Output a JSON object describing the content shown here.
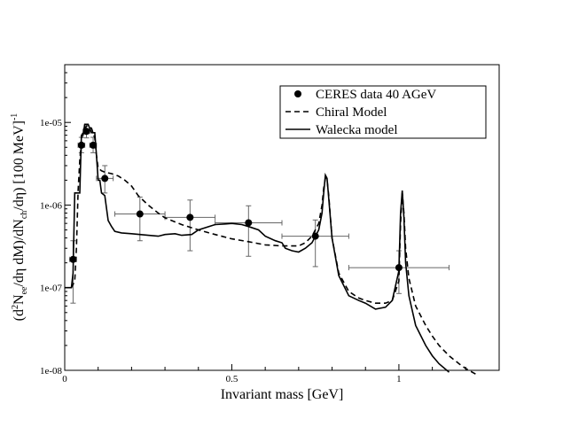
{
  "chart_data": {
    "type": "line",
    "title": "",
    "xlabel": "Invariant mass [GeV]",
    "ylabel_parts": {
      "open": "(d",
      "sup2": "2",
      "n": "N",
      "sub_ee": "ee",
      "mid": "/dη  dM)/dN",
      "sub_ch": "ch",
      "tail": "/dη) [100 MeV]",
      "sup_m1": "-1"
    },
    "xlim": [
      0,
      1.3
    ],
    "ylim": [
      1e-08,
      5e-05
    ],
    "yscale": "log",
    "x_ticks": [
      {
        "value": 0,
        "label": "0"
      },
      {
        "value": 0.5,
        "label": "0.5"
      },
      {
        "value": 1,
        "label": "1"
      }
    ],
    "y_ticks": [
      {
        "value": 1e-08,
        "label": "1e-08"
      },
      {
        "value": 1e-07,
        "label": "1e-07"
      },
      {
        "value": 1e-06,
        "label": "1e-06"
      },
      {
        "value": 1e-05,
        "label": "1e-05"
      }
    ],
    "legend_position": "top-right",
    "series": [
      {
        "name": "CERES data 40 AGeV",
        "style": "markers",
        "points": [
          {
            "x": 0.025,
            "y": 2.2e-07,
            "xerr": 0.01,
            "ylo": 6.5e-08,
            "yhi": 3.7e-07
          },
          {
            "x": 0.05,
            "y": 5.3e-06,
            "xerr": 0.01,
            "ylo": 4.3e-06,
            "yhi": 6.6e-06
          },
          {
            "x": 0.065,
            "y": 7.8e-06,
            "xerr": 0.01,
            "ylo": 6.5e-06,
            "yhi": 9.3e-06
          },
          {
            "x": 0.085,
            "y": 5.3e-06,
            "xerr": 0.01,
            "ylo": 4.3e-06,
            "yhi": 6.6e-06
          },
          {
            "x": 0.12,
            "y": 2.1e-06,
            "xerr": 0.025,
            "ylo": 1.4e-06,
            "yhi": 3e-06
          },
          {
            "x": 0.225,
            "y": 7.8e-07,
            "xerr": 0.075,
            "ylo": 3.7e-07,
            "yhi": 1.25e-06
          },
          {
            "x": 0.375,
            "y": 7.1e-07,
            "xerr": 0.075,
            "ylo": 2.8e-07,
            "yhi": 1.15e-06
          },
          {
            "x": 0.55,
            "y": 6.1e-07,
            "xerr": 0.1,
            "ylo": 2.4e-07,
            "yhi": 9.8e-07
          },
          {
            "x": 0.75,
            "y": 4.2e-07,
            "xerr": 0.1,
            "ylo": 1.8e-07,
            "yhi": 6.6e-07
          },
          {
            "x": 1.0,
            "y": 1.75e-07,
            "xerr": 0.15,
            "ylo": 8.5e-08,
            "yhi": 2.8e-07
          }
        ]
      },
      {
        "name": "Chiral Model",
        "style": "dashed",
        "x": [
          0.02,
          0.03,
          0.035,
          0.04,
          0.045,
          0.05,
          0.055,
          0.06,
          0.065,
          0.07,
          0.08,
          0.09,
          0.095,
          0.1,
          0.11,
          0.12,
          0.14,
          0.16,
          0.18,
          0.2,
          0.22,
          0.25,
          0.28,
          0.3,
          0.35,
          0.4,
          0.45,
          0.5,
          0.55,
          0.6,
          0.65,
          0.7,
          0.72,
          0.74,
          0.76,
          0.77,
          0.775,
          0.78,
          0.785,
          0.79,
          0.8,
          0.82,
          0.85,
          0.88,
          0.9,
          0.93,
          0.96,
          0.98,
          1.0,
          1.005,
          1.01,
          1.015,
          1.02,
          1.03,
          1.05,
          1.08,
          1.1,
          1.12,
          1.15,
          1.18,
          1.2,
          1.23
        ],
        "y": [
          1e-07,
          1.2e-07,
          3e-07,
          1.5e-06,
          3.5e-06,
          6e-06,
          8e-06,
          8.6e-06,
          9e-06,
          9.1e-06,
          8.5e-06,
          6.5e-06,
          4e-06,
          2.8e-06,
          2.6e-06,
          2.5e-06,
          2.4e-06,
          2.25e-06,
          2e-06,
          1.7e-06,
          1.3e-06,
          1e-06,
          8e-07,
          7e-07,
          5.8e-07,
          5e-07,
          4.4e-07,
          3.9e-07,
          3.6e-07,
          3.3e-07,
          3.2e-07,
          3.2e-07,
          3.5e-07,
          4.2e-07,
          6e-07,
          1e-06,
          1.6e-06,
          2.1e-06,
          2e-06,
          1.3e-06,
          4e-07,
          1.5e-07,
          9e-08,
          7.5e-08,
          7e-08,
          6.5e-08,
          6.5e-08,
          7e-08,
          1.2e-07,
          6e-07,
          1.4e-06,
          8e-07,
          3e-07,
          1.3e-07,
          6e-08,
          3.5e-08,
          2.6e-08,
          2e-08,
          1.5e-08,
          1.2e-08,
          1.05e-08,
          9e-09
        ]
      },
      {
        "name": "Walecka model",
        "style": "solid",
        "x": [
          0.0,
          0.02,
          0.025,
          0.03,
          0.035,
          0.045,
          0.05,
          0.055,
          0.06,
          0.07,
          0.08,
          0.09,
          0.095,
          0.1,
          0.105,
          0.11,
          0.12,
          0.13,
          0.14,
          0.15,
          0.17,
          0.2,
          0.25,
          0.28,
          0.3,
          0.33,
          0.35,
          0.38,
          0.4,
          0.45,
          0.48,
          0.5,
          0.53,
          0.55,
          0.58,
          0.6,
          0.63,
          0.65,
          0.66,
          0.68,
          0.7,
          0.72,
          0.74,
          0.76,
          0.77,
          0.775,
          0.78,
          0.785,
          0.79,
          0.8,
          0.82,
          0.85,
          0.88,
          0.9,
          0.93,
          0.96,
          0.98,
          1.0,
          1.005,
          1.01,
          1.015,
          1.02,
          1.03,
          1.05,
          1.08,
          1.1,
          1.12,
          1.15
        ],
        "y": [
          1e-07,
          1e-07,
          1.5e-07,
          1.4e-06,
          1.4e-06,
          1.4e-06,
          7e-06,
          7e-06,
          9.5e-06,
          9.5e-06,
          7.5e-06,
          7.5e-06,
          4e-06,
          2e-06,
          2e-06,
          1.4e-06,
          1.3e-06,
          6.5e-07,
          5.5e-07,
          4.8e-07,
          4.6e-07,
          4.5e-07,
          4.3e-07,
          4.2e-07,
          4.4e-07,
          4.5e-07,
          4.3e-07,
          4.4e-07,
          5e-07,
          5.8e-07,
          5.9e-07,
          6e-07,
          5.8e-07,
          5.5e-07,
          5e-07,
          4.2e-07,
          3.7e-07,
          3.5e-07,
          3e-07,
          2.8e-07,
          2.7e-07,
          3e-07,
          3.5e-07,
          5e-07,
          8e-07,
          1.4e-06,
          2.3e-06,
          2.1e-06,
          1.2e-06,
          4e-07,
          1.4e-07,
          8e-08,
          7e-08,
          6.5e-08,
          5.5e-08,
          5.8e-08,
          7e-08,
          1.6e-07,
          8e-07,
          1.5e-06,
          7e-07,
          2e-07,
          8e-08,
          3.5e-08,
          2e-08,
          1.5e-08,
          1.2e-08,
          9.5e-09
        ]
      }
    ]
  }
}
